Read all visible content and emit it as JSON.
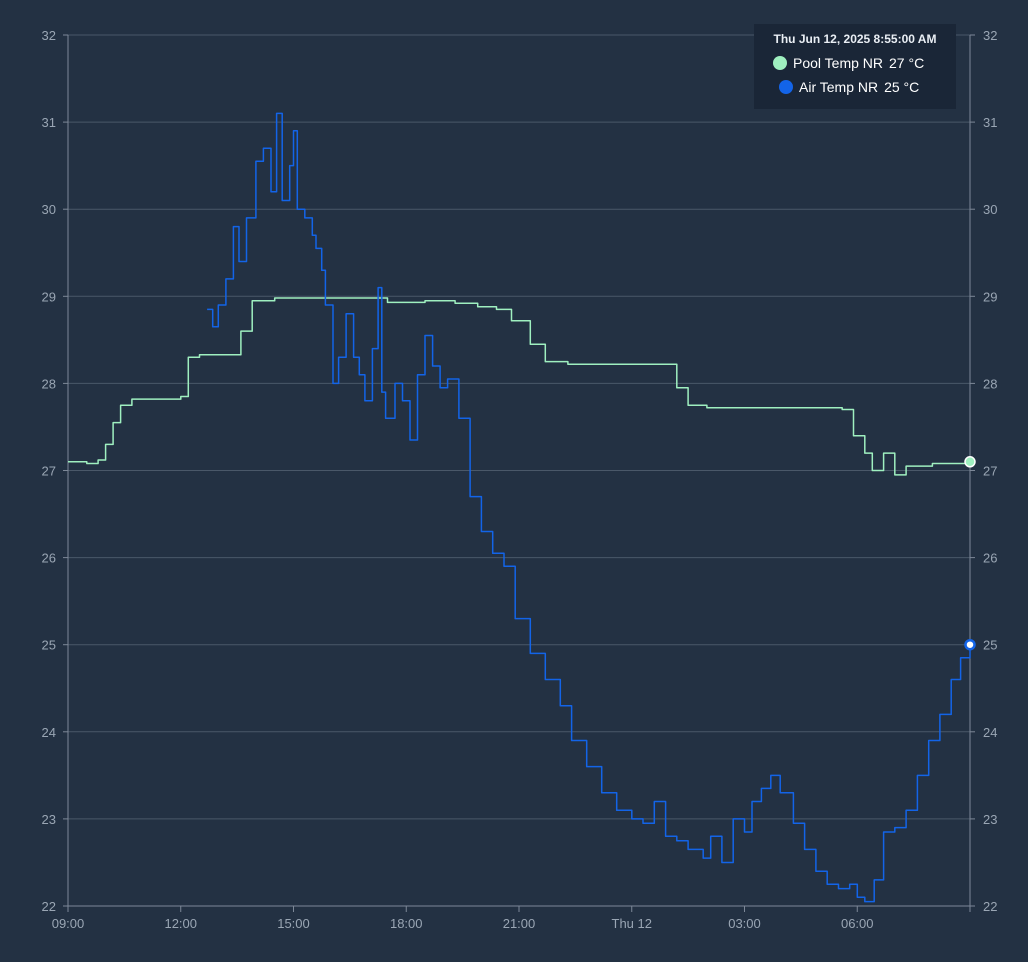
{
  "tooltip": {
    "title": "Thu Jun 12, 2025 8:55:00 AM",
    "rows": [
      {
        "series": "Pool Temp NR",
        "value": "27 °C"
      },
      {
        "series": "Air Temp NR",
        "value": "25 °C"
      }
    ]
  },
  "colors": {
    "background": "#233143",
    "pool": "#9ff0c0",
    "air": "#1364e8",
    "grid": "#4a5869",
    "text": "#9aa6b4",
    "tooltip_bg": "#1a2637"
  },
  "chart_data": {
    "type": "line",
    "title": "",
    "xlabel": "",
    "ylabel": "",
    "x_unit": "hours since Wed Jun 11, 2025 09:00",
    "xlim": [
      0,
      24
    ],
    "ylim": [
      22,
      32
    ],
    "y_ticks": [
      22,
      23,
      24,
      25,
      26,
      27,
      28,
      29,
      30,
      31,
      32
    ],
    "x_ticks": [
      {
        "label": "09:00",
        "x": 0
      },
      {
        "label": "12:00",
        "x": 3
      },
      {
        "label": "15:00",
        "x": 6
      },
      {
        "label": "18:00",
        "x": 9
      },
      {
        "label": "21:00",
        "x": 12
      },
      {
        "label": "Thu 12",
        "x": 15
      },
      {
        "label": "03:00",
        "x": 18
      },
      {
        "label": "06:00",
        "x": 21
      }
    ],
    "grid": true,
    "legend": "tooltip top-right",
    "series": [
      {
        "name": "Pool Temp NR",
        "color": "#9ff0c0",
        "points": [
          [
            0,
            27.1
          ],
          [
            0.5,
            27.08
          ],
          [
            0.8,
            27.12
          ],
          [
            1.0,
            27.3
          ],
          [
            1.2,
            27.55
          ],
          [
            1.4,
            27.75
          ],
          [
            1.7,
            27.82
          ],
          [
            2.2,
            27.82
          ],
          [
            3.0,
            27.85
          ],
          [
            3.2,
            28.3
          ],
          [
            3.5,
            28.33
          ],
          [
            4.3,
            28.33
          ],
          [
            4.6,
            28.6
          ],
          [
            4.9,
            28.95
          ],
          [
            5.5,
            28.98
          ],
          [
            7.5,
            28.98
          ],
          [
            8.5,
            28.93
          ],
          [
            9.5,
            28.95
          ],
          [
            10.3,
            28.92
          ],
          [
            10.9,
            28.88
          ],
          [
            11.4,
            28.85
          ],
          [
            11.8,
            28.72
          ],
          [
            12.3,
            28.45
          ],
          [
            12.7,
            28.25
          ],
          [
            13.3,
            28.22
          ],
          [
            15.0,
            28.22
          ],
          [
            16.0,
            28.22
          ],
          [
            16.2,
            27.95
          ],
          [
            16.5,
            27.75
          ],
          [
            17.0,
            27.72
          ],
          [
            18.0,
            27.72
          ],
          [
            19.5,
            27.72
          ],
          [
            20.6,
            27.7
          ],
          [
            20.9,
            27.4
          ],
          [
            21.2,
            27.2
          ],
          [
            21.4,
            27.0
          ],
          [
            21.7,
            27.2
          ],
          [
            22.0,
            26.95
          ],
          [
            22.3,
            27.05
          ],
          [
            23.0,
            27.08
          ],
          [
            24.0,
            27.1
          ]
        ]
      },
      {
        "name": "Air Temp NR",
        "color": "#1364e8",
        "points": [
          [
            3.7,
            28.85
          ],
          [
            3.85,
            28.65
          ],
          [
            4.0,
            28.9
          ],
          [
            4.2,
            29.2
          ],
          [
            4.4,
            29.8
          ],
          [
            4.55,
            29.4
          ],
          [
            4.75,
            29.9
          ],
          [
            5.0,
            30.55
          ],
          [
            5.2,
            30.7
          ],
          [
            5.4,
            30.2
          ],
          [
            5.55,
            31.1
          ],
          [
            5.7,
            30.1
          ],
          [
            5.9,
            30.5
          ],
          [
            6.0,
            30.9
          ],
          [
            6.1,
            30.0
          ],
          [
            6.3,
            29.9
          ],
          [
            6.5,
            29.7
          ],
          [
            6.6,
            29.55
          ],
          [
            6.75,
            29.3
          ],
          [
            6.85,
            28.9
          ],
          [
            7.05,
            28.0
          ],
          [
            7.2,
            28.3
          ],
          [
            7.4,
            28.8
          ],
          [
            7.6,
            28.3
          ],
          [
            7.75,
            28.1
          ],
          [
            7.9,
            27.8
          ],
          [
            8.1,
            28.4
          ],
          [
            8.25,
            29.1
          ],
          [
            8.35,
            27.9
          ],
          [
            8.45,
            27.6
          ],
          [
            8.7,
            28.0
          ],
          [
            8.9,
            27.8
          ],
          [
            9.1,
            27.35
          ],
          [
            9.3,
            28.1
          ],
          [
            9.5,
            28.55
          ],
          [
            9.7,
            28.2
          ],
          [
            9.9,
            27.95
          ],
          [
            10.1,
            28.05
          ],
          [
            10.4,
            27.6
          ],
          [
            10.7,
            26.7
          ],
          [
            11.0,
            26.3
          ],
          [
            11.3,
            26.05
          ],
          [
            11.6,
            25.9
          ],
          [
            11.9,
            25.3
          ],
          [
            12.3,
            24.9
          ],
          [
            12.7,
            24.6
          ],
          [
            13.1,
            24.3
          ],
          [
            13.4,
            23.9
          ],
          [
            13.8,
            23.6
          ],
          [
            14.2,
            23.3
          ],
          [
            14.6,
            23.1
          ],
          [
            15.0,
            23.0
          ],
          [
            15.3,
            22.95
          ],
          [
            15.6,
            23.2
          ],
          [
            15.9,
            22.8
          ],
          [
            16.2,
            22.75
          ],
          [
            16.5,
            22.65
          ],
          [
            16.9,
            22.55
          ],
          [
            17.1,
            22.8
          ],
          [
            17.4,
            22.5
          ],
          [
            17.7,
            23.0
          ],
          [
            18.0,
            22.85
          ],
          [
            18.2,
            23.2
          ],
          [
            18.45,
            23.35
          ],
          [
            18.7,
            23.5
          ],
          [
            18.95,
            23.3
          ],
          [
            19.3,
            22.95
          ],
          [
            19.6,
            22.65
          ],
          [
            19.9,
            22.4
          ],
          [
            20.2,
            22.25
          ],
          [
            20.5,
            22.2
          ],
          [
            20.8,
            22.25
          ],
          [
            21.0,
            22.1
          ],
          [
            21.2,
            22.05
          ],
          [
            21.45,
            22.3
          ],
          [
            21.7,
            22.85
          ],
          [
            22.0,
            22.9
          ],
          [
            22.3,
            23.1
          ],
          [
            22.6,
            23.5
          ],
          [
            22.9,
            23.9
          ],
          [
            23.2,
            24.2
          ],
          [
            23.5,
            24.6
          ],
          [
            23.75,
            24.85
          ],
          [
            24.0,
            25.0
          ]
        ]
      }
    ]
  }
}
